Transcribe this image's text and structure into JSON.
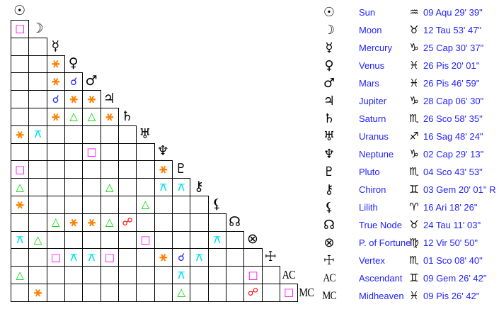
{
  "colors": {
    "background": "#ffffff",
    "grid_line": "#000000",
    "glyph": "#000000",
    "table_text": "#2222ff",
    "conjunction": "#2222ff",
    "sextile": "#ff8000",
    "square": "#ff00ff",
    "trine": "#00d800",
    "opposition": "#ff0000",
    "quincunx": "#00e0f0"
  },
  "aspect_symbols": {
    "conjunction": "☌",
    "sextile": "⚹",
    "square": "□",
    "trine": "△",
    "opposition": "☍",
    "quincunx": "⚻"
  },
  "planets": [
    {
      "id": "sun",
      "label": "Sun",
      "glyph": "☉",
      "sign": "aquarius",
      "sign_glyph": "♒",
      "position": "09 Aqu 29' 39\""
    },
    {
      "id": "moon",
      "label": "Moon",
      "glyph": "☽",
      "sign": "taurus",
      "sign_glyph": "♉",
      "position": "12 Tau 53' 47\""
    },
    {
      "id": "mercury",
      "label": "Mercury",
      "glyph": "☿",
      "sign": "capricorn",
      "sign_glyph": "♑",
      "position": "25 Cap 30' 37\""
    },
    {
      "id": "venus",
      "label": "Venus",
      "glyph": "♀",
      "sign": "pisces",
      "sign_glyph": "♓",
      "position": "26 Pis 20' 01\""
    },
    {
      "id": "mars",
      "label": "Mars",
      "glyph": "♂",
      "sign": "pisces",
      "sign_glyph": "♓",
      "position": "26 Pis 46' 59\""
    },
    {
      "id": "jupiter",
      "label": "Jupiter",
      "glyph": "♃",
      "sign": "capricorn",
      "sign_glyph": "♑",
      "position": "28 Cap 06' 30\""
    },
    {
      "id": "saturn",
      "label": "Saturn",
      "glyph": "♄",
      "sign": "scorpio",
      "sign_glyph": "♏",
      "position": "26 Sco 58' 35\""
    },
    {
      "id": "uranus",
      "label": "Uranus",
      "glyph": "♅",
      "sign": "sagittarius",
      "sign_glyph": "♐",
      "position": "16 Sag 48' 24\""
    },
    {
      "id": "neptune",
      "label": "Neptune",
      "glyph": "♆",
      "sign": "capricorn",
      "sign_glyph": "♑",
      "position": "02 Cap 29' 13\""
    },
    {
      "id": "pluto",
      "label": "Pluto",
      "glyph": "♇",
      "sign": "scorpio",
      "sign_glyph": "♏",
      "position": "04 Sco 43' 53\""
    },
    {
      "id": "chiron",
      "label": "Chiron",
      "glyph": "⚷",
      "sign": "gemini",
      "sign_glyph": "♊",
      "position": "03 Gem 20' 01\" R"
    },
    {
      "id": "lilith",
      "label": "Lilith",
      "glyph": "⚸",
      "sign": "aries",
      "sign_glyph": "♈",
      "position": "16 Ari 18' 26\""
    },
    {
      "id": "true-node",
      "label": "True Node",
      "glyph": "☊",
      "sign": "taurus",
      "sign_glyph": "♉",
      "position": "24 Tau 11' 03\""
    },
    {
      "id": "part-of-fortune",
      "label": "P. of Fortune",
      "glyph": "⊗",
      "sign": "virgo",
      "sign_glyph": "♍",
      "position": "12 Vir 50' 50\""
    },
    {
      "id": "vertex",
      "label": "Vertex",
      "glyph": "☩",
      "sign": "scorpio",
      "sign_glyph": "♏",
      "position": "01 Sco 08' 40\""
    },
    {
      "id": "ascendant",
      "label": "Ascendant",
      "glyph": "AC",
      "sign": "gemini",
      "sign_glyph": "♊",
      "position": "09 Gem 26' 42\""
    },
    {
      "id": "midheaven",
      "label": "Midheaven",
      "glyph": "MC",
      "sign": "pisces",
      "sign_glyph": "♓",
      "position": "09 Pis 26' 42\""
    }
  ],
  "aspect_grid": {
    "rows": [
      {
        "planet": "moon",
        "aspects": [
          {
            "col": 0,
            "type": "square"
          }
        ]
      },
      {
        "planet": "mercury",
        "aspects": []
      },
      {
        "planet": "venus",
        "aspects": [
          {
            "col": 2,
            "type": "sextile"
          }
        ]
      },
      {
        "planet": "mars",
        "aspects": [
          {
            "col": 2,
            "type": "sextile"
          },
          {
            "col": 3,
            "type": "conjunction"
          }
        ]
      },
      {
        "planet": "jupiter",
        "aspects": [
          {
            "col": 2,
            "type": "conjunction"
          },
          {
            "col": 3,
            "type": "sextile"
          },
          {
            "col": 4,
            "type": "sextile"
          }
        ]
      },
      {
        "planet": "saturn",
        "aspects": [
          {
            "col": 2,
            "type": "sextile"
          },
          {
            "col": 3,
            "type": "trine"
          },
          {
            "col": 4,
            "type": "trine"
          },
          {
            "col": 5,
            "type": "sextile"
          }
        ]
      },
      {
        "planet": "uranus",
        "aspects": [
          {
            "col": 0,
            "type": "sextile"
          },
          {
            "col": 1,
            "type": "quincunx"
          }
        ]
      },
      {
        "planet": "neptune",
        "aspects": [
          {
            "col": 4,
            "type": "square"
          }
        ]
      },
      {
        "planet": "pluto",
        "aspects": [
          {
            "col": 0,
            "type": "square"
          },
          {
            "col": 8,
            "type": "sextile"
          }
        ]
      },
      {
        "planet": "chiron",
        "aspects": [
          {
            "col": 0,
            "type": "trine"
          },
          {
            "col": 5,
            "type": "trine"
          },
          {
            "col": 8,
            "type": "quincunx"
          },
          {
            "col": 9,
            "type": "quincunx"
          }
        ]
      },
      {
        "planet": "lilith",
        "aspects": [
          {
            "col": 0,
            "type": "sextile"
          },
          {
            "col": 7,
            "type": "trine"
          }
        ]
      },
      {
        "planet": "true-node",
        "aspects": [
          {
            "col": 2,
            "type": "trine"
          },
          {
            "col": 3,
            "type": "sextile"
          },
          {
            "col": 4,
            "type": "sextile"
          },
          {
            "col": 5,
            "type": "trine"
          },
          {
            "col": 6,
            "type": "opposition"
          }
        ]
      },
      {
        "planet": "part-of-fortune",
        "aspects": [
          {
            "col": 0,
            "type": "quincunx"
          },
          {
            "col": 1,
            "type": "trine"
          },
          {
            "col": 7,
            "type": "square"
          },
          {
            "col": 11,
            "type": "quincunx"
          }
        ]
      },
      {
        "planet": "vertex",
        "aspects": [
          {
            "col": 2,
            "type": "square"
          },
          {
            "col": 3,
            "type": "quincunx"
          },
          {
            "col": 4,
            "type": "quincunx"
          },
          {
            "col": 5,
            "type": "square"
          },
          {
            "col": 8,
            "type": "sextile"
          },
          {
            "col": 9,
            "type": "conjunction"
          },
          {
            "col": 10,
            "type": "quincunx"
          }
        ]
      },
      {
        "planet": "ascendant",
        "aspects": [
          {
            "col": 0,
            "type": "trine"
          },
          {
            "col": 9,
            "type": "quincunx"
          },
          {
            "col": 13,
            "type": "square"
          }
        ]
      },
      {
        "planet": "midheaven",
        "aspects": [
          {
            "col": 1,
            "type": "sextile"
          },
          {
            "col": 9,
            "type": "trine"
          },
          {
            "col": 13,
            "type": "opposition"
          },
          {
            "col": 15,
            "type": "square"
          }
        ]
      }
    ]
  }
}
